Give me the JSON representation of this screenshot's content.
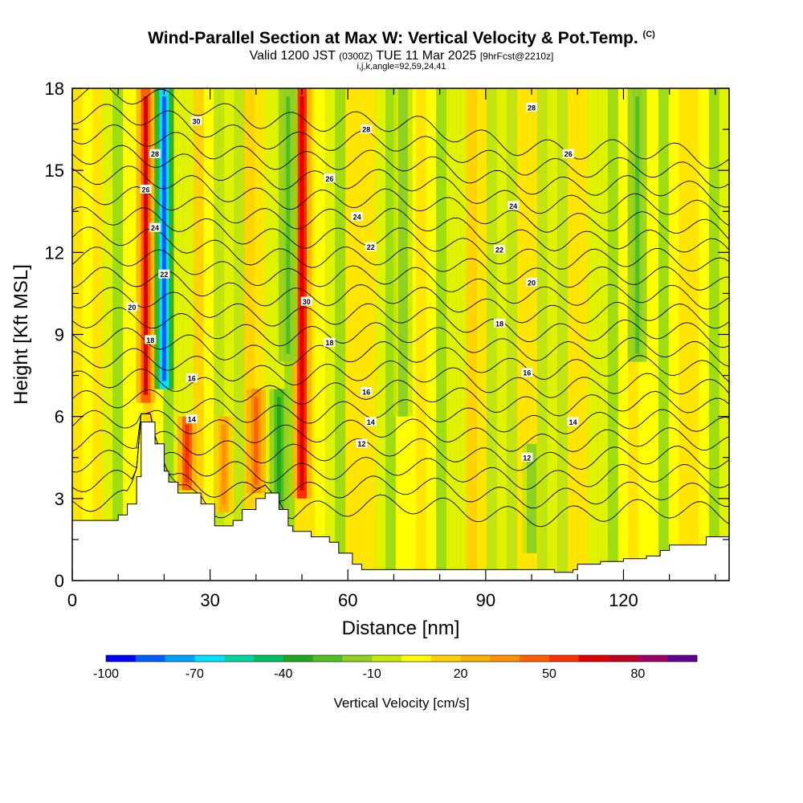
{
  "header": {
    "title": "Wind-Parallel Section at Max W: Vertical Velocity & Pot.Temp.",
    "title_mark": "(C)",
    "valid_prefix": "Valid 1200 JST",
    "valid_zulu": "(0300Z)",
    "valid_date": "TUE 11 Mar 2025",
    "forecast": "[9hrFcst@2210z]",
    "indices": "i,j,k,angle=92,59,24,41"
  },
  "chart_data": {
    "type": "heatmap",
    "xlabel": "Distance [nm]",
    "ylabel": "Height [Kft MSL]",
    "xlim": [
      0,
      143
    ],
    "ylim": [
      0,
      18
    ],
    "x_ticks": [
      0,
      30,
      60,
      90,
      120
    ],
    "y_ticks": [
      0,
      3,
      6,
      9,
      12,
      15,
      18
    ],
    "colorbar": {
      "label": "Vertical Velocity [cm/s]",
      "tick_labels": [
        "-100",
        "-70",
        "-40",
        "-10",
        "20",
        "50",
        "80"
      ],
      "tick_values": [
        -100,
        -70,
        -40,
        -10,
        20,
        50,
        80
      ],
      "range": [
        -100,
        100
      ],
      "colors": [
        "#0000ff",
        "#0060ff",
        "#00a0ff",
        "#00e0ff",
        "#00d8a0",
        "#00c060",
        "#20a820",
        "#50c020",
        "#90d020",
        "#c8e800",
        "#ffff00",
        "#ffd000",
        "#ffb000",
        "#ff9000",
        "#ff6000",
        "#ff3000",
        "#e00000",
        "#c00020",
        "#a00060",
        "#600090"
      ]
    },
    "terrain_profile": {
      "distance": [
        0,
        3,
        7,
        10,
        12,
        14,
        15,
        17,
        18,
        20,
        21,
        23,
        25,
        28,
        31,
        33,
        35,
        37,
        40,
        42,
        45,
        47,
        48,
        50,
        52,
        56,
        58,
        61,
        63,
        70,
        80,
        90,
        100,
        105,
        109,
        110,
        115,
        120,
        125,
        128,
        130,
        135,
        138,
        141,
        143
      ],
      "height_kft": [
        2.2,
        2.2,
        2.2,
        2.4,
        2.8,
        3.8,
        5.8,
        5.8,
        5.0,
        4.0,
        3.6,
        3.2,
        3.2,
        2.8,
        2.0,
        2.0,
        2.2,
        2.6,
        3.0,
        3.2,
        2.6,
        2.0,
        1.8,
        1.8,
        1.6,
        1.4,
        1.0,
        0.6,
        0.4,
        0.4,
        0.4,
        0.4,
        0.4,
        0.3,
        0.4,
        0.6,
        0.7,
        0.8,
        0.9,
        1.1,
        1.3,
        1.3,
        1.6,
        1.6,
        1.6
      ]
    },
    "updraft_bands": [
      {
        "x": 16,
        "bottom_kft": 6.5,
        "top_kft": 18,
        "w_cms": 60
      },
      {
        "x": 20,
        "bottom_kft": 7,
        "top_kft": 18,
        "w_cms": -85
      },
      {
        "x": 25,
        "bottom_kft": 3.3,
        "top_kft": 6,
        "w_cms": 55
      },
      {
        "x": 33,
        "bottom_kft": 2.5,
        "top_kft": 6,
        "w_cms": 35
      },
      {
        "x": 40,
        "bottom_kft": 3.2,
        "top_kft": 7,
        "w_cms": 45
      },
      {
        "x": 45,
        "bottom_kft": 2.5,
        "top_kft": 7,
        "w_cms": -35
      },
      {
        "x": 50,
        "bottom_kft": 3,
        "top_kft": 18,
        "w_cms": 65
      },
      {
        "x": 47,
        "bottom_kft": 8,
        "top_kft": 18,
        "w_cms": -25
      },
      {
        "x": 72,
        "bottom_kft": 6,
        "top_kft": 18,
        "w_cms": -20
      },
      {
        "x": 100,
        "bottom_kft": 1,
        "top_kft": 5,
        "w_cms": -20
      },
      {
        "x": 123,
        "bottom_kft": 8,
        "top_kft": 18,
        "w_cms": -25
      }
    ],
    "contours": {
      "variable": "Potential Temperature",
      "levels": [
        12,
        14,
        16,
        18,
        20,
        22,
        24,
        26,
        28,
        30
      ],
      "labels": [
        {
          "text": "30",
          "x": 27,
          "y": 16.8
        },
        {
          "text": "28",
          "x": 18,
          "y": 15.6
        },
        {
          "text": "26",
          "x": 16,
          "y": 14.3
        },
        {
          "text": "24",
          "x": 18,
          "y": 12.9
        },
        {
          "text": "22",
          "x": 20,
          "y": 11.2
        },
        {
          "text": "20",
          "x": 13,
          "y": 10.0
        },
        {
          "text": "18",
          "x": 17,
          "y": 8.8
        },
        {
          "text": "16",
          "x": 26,
          "y": 7.4
        },
        {
          "text": "14",
          "x": 26,
          "y": 5.9
        },
        {
          "text": "30",
          "x": 51,
          "y": 10.2
        },
        {
          "text": "28",
          "x": 64,
          "y": 16.5
        },
        {
          "text": "26",
          "x": 56,
          "y": 14.7
        },
        {
          "text": "24",
          "x": 62,
          "y": 13.3
        },
        {
          "text": "22",
          "x": 65,
          "y": 12.2
        },
        {
          "text": "18",
          "x": 56,
          "y": 8.7
        },
        {
          "text": "16",
          "x": 64,
          "y": 6.9
        },
        {
          "text": "14",
          "x": 65,
          "y": 5.8
        },
        {
          "text": "12",
          "x": 63,
          "y": 5.0
        },
        {
          "text": "28",
          "x": 100,
          "y": 17.3
        },
        {
          "text": "26",
          "x": 108,
          "y": 15.6
        },
        {
          "text": "24",
          "x": 96,
          "y": 13.7
        },
        {
          "text": "22",
          "x": 93,
          "y": 12.1
        },
        {
          "text": "20",
          "x": 100,
          "y": 10.9
        },
        {
          "text": "18",
          "x": 93,
          "y": 9.4
        },
        {
          "text": "16",
          "x": 99,
          "y": 7.6
        },
        {
          "text": "14",
          "x": 109,
          "y": 5.8
        },
        {
          "text": "12",
          "x": 99,
          "y": 4.5
        }
      ]
    }
  }
}
